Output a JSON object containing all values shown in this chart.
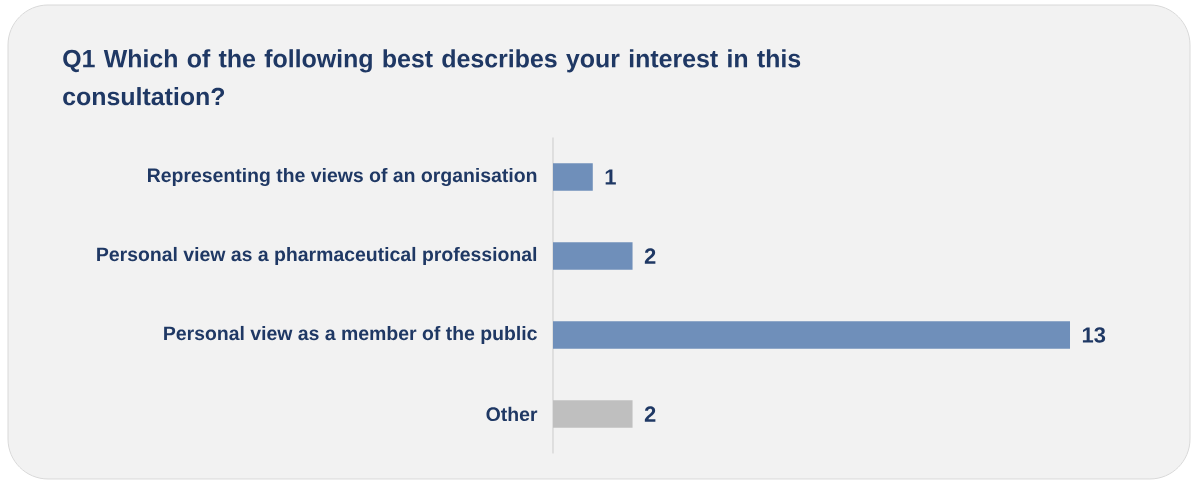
{
  "chart_data": {
    "type": "bar",
    "orientation": "horizontal",
    "title": "Q1 Which of the following best describes your interest in this consultation?",
    "categories": [
      "Representing the views of an organisation",
      "Personal view as a pharmaceutical professional",
      "Personal view as a member of the public",
      "Other"
    ],
    "values": [
      1,
      2,
      13,
      2
    ],
    "colors": [
      "#6f8fba",
      "#6f8fba",
      "#6f8fba",
      "#bfbfbf"
    ],
    "data_labels": true
  }
}
